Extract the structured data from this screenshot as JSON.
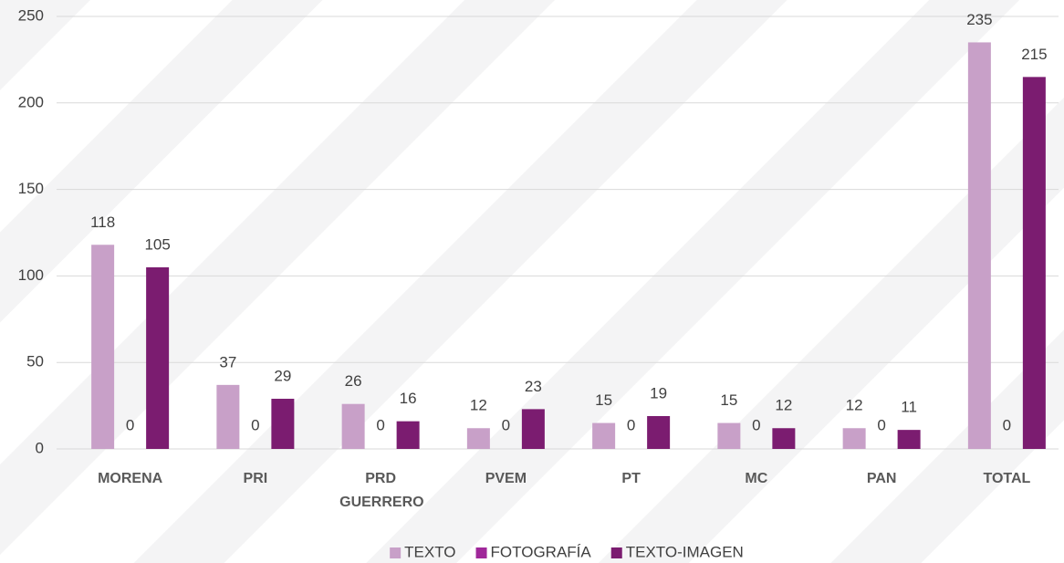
{
  "chart_data": {
    "type": "bar",
    "categories": [
      "MORENA",
      "PRI",
      "PRD GUERRERO",
      "PVEM",
      "PT",
      "MC",
      "PAN",
      "TOTAL"
    ],
    "series": [
      {
        "name": "TEXTO",
        "color": "#c8a0c8",
        "values": [
          118,
          37,
          26,
          12,
          15,
          15,
          12,
          235
        ]
      },
      {
        "name": "FOTOGRAFÍA",
        "color": "#a0289a",
        "values": [
          0,
          0,
          0,
          0,
          0,
          0,
          0,
          0
        ]
      },
      {
        "name": "TEXTO-IMAGEN",
        "color": "#7b1c70",
        "values": [
          105,
          29,
          16,
          23,
          19,
          12,
          11,
          215
        ]
      }
    ],
    "ylim": [
      0,
      250
    ],
    "yticks": [
      0,
      50,
      100,
      150,
      200,
      250
    ],
    "grid": true,
    "legend": "bottom"
  }
}
